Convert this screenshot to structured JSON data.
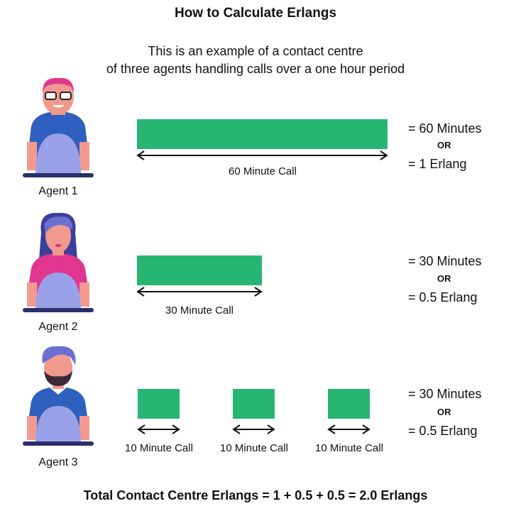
{
  "title": "How to Calculate Erlangs",
  "subtitle_line1": "This is an example of a contact centre",
  "subtitle_line2": "of three agents handling calls over a one hour period",
  "colors": {
    "bar": "#27b574",
    "shirt_blue": "#2f5fbf",
    "shirt_pink": "#e0368f",
    "desk": "#9aa0e8",
    "hair_blue": "#6a6fd0"
  },
  "agents": [
    {
      "label": "Agent 1",
      "calls": [
        "60 Minute Call"
      ],
      "minutes_text": "= 60 Minutes",
      "or": "OR",
      "erlang_text": "= 1 Erlang"
    },
    {
      "label": "Agent 2",
      "calls": [
        "30 Minute Call"
      ],
      "minutes_text": "= 30 Minutes",
      "or": "OR",
      "erlang_text": "= 0.5 Erlang"
    },
    {
      "label": "Agent 3",
      "calls": [
        "10 Minute Call",
        "10 Minute Call",
        "10 Minute Call"
      ],
      "minutes_text": "= 30 Minutes",
      "or": "OR",
      "erlang_text": "= 0.5 Erlang"
    }
  ],
  "total": "Total Contact Centre Erlangs = 1 + 0.5 + 0.5 = 2.0 Erlangs"
}
